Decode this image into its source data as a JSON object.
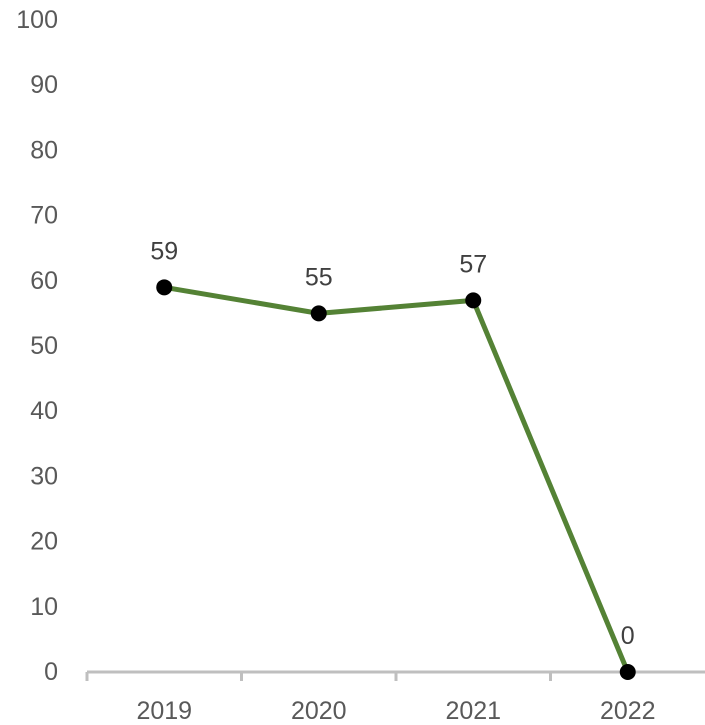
{
  "chart_data": {
    "type": "line",
    "categories": [
      "2019",
      "2020",
      "2021",
      "2022"
    ],
    "series": [
      {
        "values": [
          59,
          55,
          57,
          0
        ],
        "data_labels": [
          "59",
          "55",
          "57",
          "0"
        ],
        "color": "#548235",
        "marker_color": "#000000"
      }
    ],
    "yticks": [
      "0",
      "10",
      "20",
      "30",
      "40",
      "50",
      "60",
      "70",
      "80",
      "90",
      "100"
    ],
    "ylim": [
      0,
      100
    ],
    "title": "",
    "xlabel": "",
    "ylabel": "",
    "grid": false,
    "legend": "none",
    "axis_color": "#bfbfbf"
  }
}
